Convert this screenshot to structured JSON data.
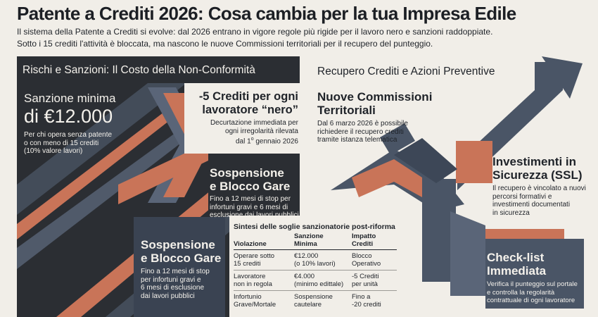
{
  "header": {
    "title": "Patente a Crediti 2026: Cosa cambia per la tua Impresa Edile",
    "intro_line1": "Il sistema della Patente a Crediti si evolve: dal 2026 entrano in vigore regole più rigide per il lavoro nero e sanzioni raddoppiate.",
    "intro_line2": "Sotto i 15 crediti l'attività è bloccata, ma nascono le nuove Commissioni territoriali per il recupero del punteggio."
  },
  "left_panel": {
    "heading": "Rischi e Sanzioni: Il Costo della Non-Conformità",
    "sanzione": {
      "title": "Sanzione minima",
      "value": "di €12.000",
      "desc_lines": [
        "Per chi opera senza patente",
        "o con meno di 15 crediti",
        "(10% valore lavori)"
      ]
    },
    "crediti_nero": {
      "title_lines": [
        "-5 Crediti per ogni",
        "lavoratore “nero”"
      ],
      "desc_lines": [
        "Decurtazione immediata per",
        "ogni irregolarità rilevata"
      ],
      "desc_line3_pre": "dal 1",
      "desc_line3_sup": "o",
      "desc_line3_post": " gennaio 2026"
    },
    "sospensione_1": {
      "title_lines": [
        "Sospensione",
        "e Blocco Gare"
      ],
      "desc_lines": [
        "Fino a 12 mesi di stop per",
        "infortuni gravi e 6 mesi di",
        "esclusione dai lavori pubblici"
      ]
    },
    "sospensione_2": {
      "title_lines": [
        "Sospensione",
        "e Blocco Gare"
      ],
      "desc_lines": [
        "Fino a 12 mesi di stop",
        "per infortuni gravi e",
        "6 mesi di esclusione",
        "dai lavori pubblici"
      ]
    }
  },
  "table": {
    "title": "Sintesi delle soglie sanzionatorie post-riforma",
    "headers": [
      [
        "Violazione"
      ],
      [
        "Sanzione",
        "Minima"
      ],
      [
        "Impatto",
        "Crediti"
      ]
    ],
    "rows": [
      [
        [
          "Operare sotto",
          "15 crediti"
        ],
        [
          "€12.000",
          "(o 10% lavori)"
        ],
        [
          "Blocco",
          "Operativo"
        ]
      ],
      [
        [
          "Lavoratore",
          "non in regola"
        ],
        [
          "€4.000",
          "(minimo edittale)"
        ],
        [
          "-5 Crediti",
          "per unità"
        ]
      ],
      [
        [
          "Infortunio",
          "Grave/Mortale"
        ],
        [
          "Sospensione",
          "cautelare"
        ],
        [
          "Fino a",
          "-20 crediti"
        ]
      ]
    ]
  },
  "right_panel": {
    "heading": "Recupero Crediti e Azioni Preventive",
    "commissioni": {
      "title_lines": [
        "Nuove Commissioni",
        "Territoriali"
      ],
      "desc_lines": [
        "Dal 6 marzo 2026 è possibile",
        "richiedere il recupero crediti",
        "tramite istanza telematica"
      ]
    },
    "investimenti": {
      "title_lines": [
        "Investimenti in",
        "Sicurezza (SSL)"
      ],
      "desc_lines": [
        "Il recupero è vincolato a nuovi",
        "percorsi formativi e",
        "investimenti documentati",
        "in sicurezza"
      ]
    },
    "checklist": {
      "title_lines": [
        "Check-list",
        "Immediata"
      ],
      "desc_lines": [
        "Verifica il punteggio sul portale",
        "e controlla la regolarità",
        "contrattuale di ogni lavoratore"
      ]
    }
  },
  "colors": {
    "background": "#f1eee8",
    "charcoal": "#2b2e33",
    "slate": "#4a5566",
    "terracotta": "#c97458",
    "text": "#1f2329"
  }
}
